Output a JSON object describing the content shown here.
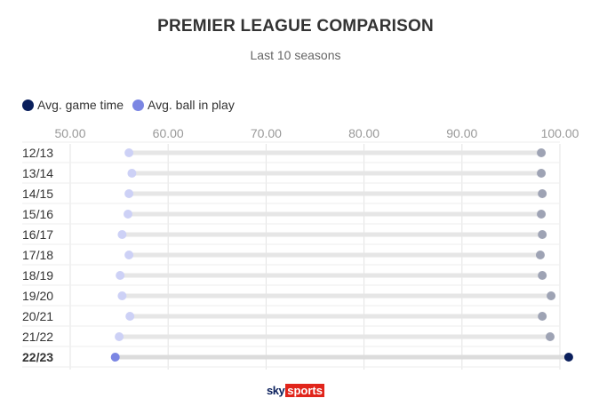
{
  "chart_data": {
    "type": "dumbbell",
    "title": "PREMIER LEAGUE COMPARISON",
    "subtitle": "Last 10 seasons",
    "xlim": [
      50,
      100
    ],
    "xticks": [
      "50.00",
      "60.00",
      "70.00",
      "80.00",
      "90.00",
      "100.00"
    ],
    "tick_values": [
      50,
      60,
      70,
      80,
      90,
      100
    ],
    "categories": [
      "12/13",
      "13/14",
      "14/15",
      "15/16",
      "16/17",
      "17/18",
      "18/19",
      "19/20",
      "20/21",
      "21/22",
      "22/23"
    ],
    "highlight": "22/23",
    "legend_position": "top-left",
    "series": [
      {
        "name": "Avg. game time",
        "color": "#0a1f5c",
        "faded_color": "#9ea3b4",
        "values": [
          98.1,
          98.1,
          98.2,
          98.1,
          98.2,
          98.0,
          98.2,
          99.1,
          98.2,
          99.0,
          100.9
        ]
      },
      {
        "name": "Avg. ball in play",
        "color": "#7b86e3",
        "faded_color": "#cdd1f6",
        "values": [
          56.0,
          56.3,
          56.0,
          55.9,
          55.3,
          56.0,
          55.1,
          55.3,
          56.1,
          55.0,
          54.6
        ]
      }
    ],
    "grid": true
  },
  "branding": {
    "sky": "sky",
    "sports": "sports"
  }
}
